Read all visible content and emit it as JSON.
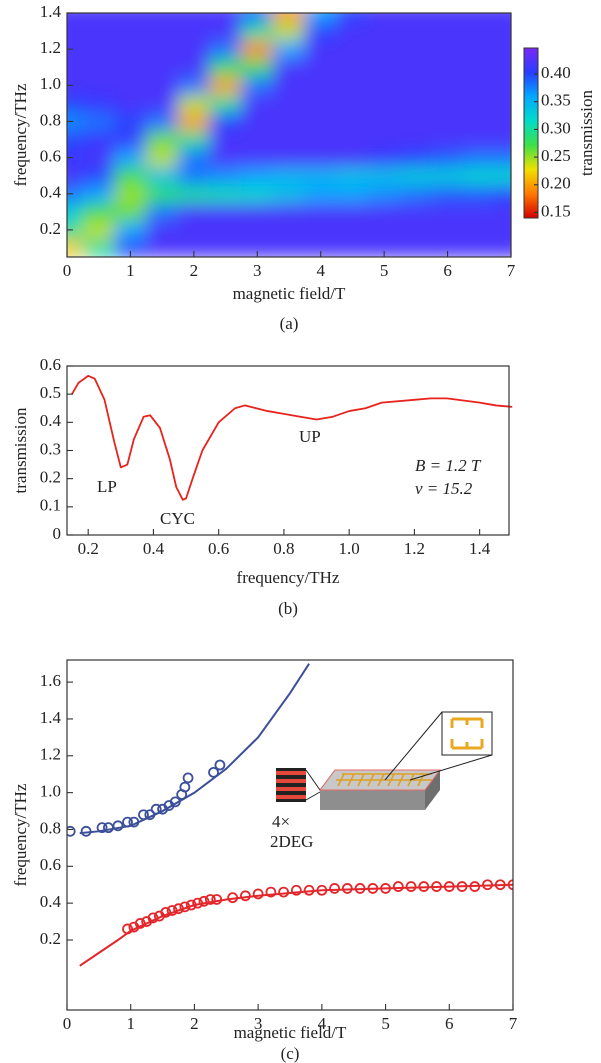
{
  "chart_data": [
    {
      "type": "heatmap",
      "caption": "(a)",
      "x_label": "magnetic field/T",
      "y_label": "frequency/THz",
      "colorbar_label": "transmission",
      "x": [
        0,
        0.5,
        1,
        1.5,
        2,
        2.5,
        3,
        3.5,
        4,
        4.5,
        5,
        5.5,
        6,
        6.5,
        7
      ],
      "y": [
        0.1,
        0.2,
        0.3,
        0.4,
        0.5,
        0.6,
        0.7,
        0.8,
        0.9,
        1.0,
        1.1,
        1.2,
        1.3,
        1.4
      ],
      "z": [
        [
          0.22,
          0.3,
          0.4,
          0.42,
          0.42,
          0.42,
          0.42,
          0.42,
          0.42,
          0.42,
          0.42,
          0.42,
          0.42,
          0.42,
          0.42
        ],
        [
          0.3,
          0.24,
          0.36,
          0.42,
          0.42,
          0.42,
          0.42,
          0.42,
          0.42,
          0.42,
          0.42,
          0.42,
          0.42,
          0.42,
          0.42
        ],
        [
          0.33,
          0.27,
          0.26,
          0.38,
          0.42,
          0.42,
          0.42,
          0.42,
          0.42,
          0.42,
          0.42,
          0.42,
          0.42,
          0.42,
          0.42
        ],
        [
          0.38,
          0.36,
          0.25,
          0.28,
          0.3,
          0.31,
          0.32,
          0.34,
          0.36,
          0.36,
          0.37,
          0.38,
          0.39,
          0.39,
          0.4
        ],
        [
          0.42,
          0.4,
          0.27,
          0.34,
          0.38,
          0.37,
          0.36,
          0.35,
          0.35,
          0.34,
          0.34,
          0.33,
          0.33,
          0.32,
          0.32
        ],
        [
          0.41,
          0.42,
          0.36,
          0.24,
          0.38,
          0.42,
          0.42,
          0.42,
          0.42,
          0.42,
          0.41,
          0.4,
          0.39,
          0.38,
          0.38
        ],
        [
          0.4,
          0.41,
          0.41,
          0.26,
          0.3,
          0.42,
          0.42,
          0.42,
          0.42,
          0.42,
          0.42,
          0.42,
          0.42,
          0.42,
          0.42
        ],
        [
          0.37,
          0.38,
          0.4,
          0.38,
          0.2,
          0.4,
          0.42,
          0.42,
          0.42,
          0.42,
          0.42,
          0.42,
          0.42,
          0.42,
          0.42
        ],
        [
          0.4,
          0.41,
          0.42,
          0.42,
          0.24,
          0.3,
          0.42,
          0.42,
          0.42,
          0.42,
          0.42,
          0.42,
          0.42,
          0.42,
          0.42
        ],
        [
          0.42,
          0.42,
          0.42,
          0.42,
          0.38,
          0.2,
          0.38,
          0.42,
          0.42,
          0.42,
          0.42,
          0.42,
          0.42,
          0.42,
          0.42
        ],
        [
          0.42,
          0.42,
          0.42,
          0.42,
          0.42,
          0.28,
          0.28,
          0.42,
          0.42,
          0.42,
          0.42,
          0.42,
          0.42,
          0.42,
          0.42
        ],
        [
          0.42,
          0.42,
          0.42,
          0.42,
          0.42,
          0.38,
          0.19,
          0.36,
          0.42,
          0.42,
          0.42,
          0.42,
          0.42,
          0.42,
          0.42
        ],
        [
          0.42,
          0.42,
          0.42,
          0.42,
          0.42,
          0.42,
          0.3,
          0.24,
          0.4,
          0.42,
          0.42,
          0.42,
          0.42,
          0.42,
          0.42
        ],
        [
          0.42,
          0.42,
          0.42,
          0.42,
          0.42,
          0.42,
          0.38,
          0.2,
          0.36,
          0.4,
          0.42,
          0.42,
          0.42,
          0.42,
          0.42
        ]
      ],
      "xlim": [
        0,
        7
      ],
      "ylim": [
        0.05,
        1.4
      ],
      "zlim": [
        0.14,
        0.447
      ],
      "xticks": [
        0,
        1,
        2,
        3,
        4,
        5,
        6,
        7
      ],
      "yticks": [
        0.2,
        0.4,
        0.6,
        0.8,
        {
          "value": 1,
          "label": "1.0"
        },
        1.2,
        1.4
      ],
      "zticks": [
        0.15,
        {
          "value": 0.2,
          "label": "0.20"
        },
        0.25,
        {
          "value": 0.3,
          "label": "0.30"
        },
        0.35,
        {
          "value": 0.4,
          "label": "0.40"
        }
      ],
      "colormap": [
        "#d40000",
        "#ff7a00",
        "#f0e000",
        "#3ee048",
        "#00dcc8",
        "#00a8ff",
        "#2a3cff",
        "#7a28f6"
      ]
    },
    {
      "type": "line",
      "caption": "(b)",
      "x_label": "frequency/THz",
      "y_label": "transmission",
      "color": "#e8221c",
      "x": [
        0.15,
        0.17,
        0.2,
        0.22,
        0.25,
        0.28,
        0.3,
        0.32,
        0.34,
        0.37,
        0.39,
        0.42,
        0.45,
        0.47,
        0.49,
        0.5,
        0.52,
        0.55,
        0.6,
        0.65,
        0.68,
        0.75,
        0.8,
        0.85,
        0.9,
        0.95,
        1.0,
        1.05,
        1.1,
        1.2,
        1.25,
        1.3,
        1.4,
        1.45,
        1.5
      ],
      "values": [
        0.5,
        0.54,
        0.565,
        0.555,
        0.48,
        0.33,
        0.24,
        0.25,
        0.34,
        0.42,
        0.425,
        0.38,
        0.27,
        0.17,
        0.125,
        0.13,
        0.2,
        0.3,
        0.4,
        0.45,
        0.46,
        0.44,
        0.43,
        0.42,
        0.41,
        0.42,
        0.44,
        0.45,
        0.47,
        0.48,
        0.485,
        0.485,
        0.47,
        0.46,
        0.455
      ],
      "annotations": [
        "LP",
        "CYC",
        "UP",
        "B = 1.2 T",
        "ν = 15.2"
      ],
      "xlim": [
        0.135,
        1.49
      ],
      "ylim": [
        0,
        0.6
      ],
      "xticks": [
        0.2,
        0.4,
        0.6,
        0.8,
        {
          "value": 1,
          "label": "1.0"
        },
        1.2,
        1.4
      ],
      "yticks": [
        0,
        0.1,
        0.2,
        0.3,
        0.4,
        0.5,
        0.6
      ]
    },
    {
      "type": "scatter",
      "caption": "(c)",
      "x_label": "magnetic field/T",
      "y_label": "frequency/THz",
      "annotations": [
        "4×",
        "2DEG"
      ],
      "series": [
        {
          "style": "line",
          "color": "#3b4f9a",
          "x": [
            0.2,
            0.5,
            1,
            1.5,
            2,
            2.5,
            3,
            3.5,
            3.8
          ],
          "values": [
            0.78,
            0.79,
            0.82,
            0.9,
            1.0,
            1.13,
            1.3,
            1.54,
            1.7
          ]
        },
        {
          "style": "line",
          "color": "#e4262a",
          "x": [
            0.2,
            0.5,
            0.8,
            1,
            1.5,
            2,
            2.5,
            3,
            4,
            5,
            6,
            7
          ],
          "values": [
            0.06,
            0.13,
            0.2,
            0.25,
            0.33,
            0.39,
            0.42,
            0.44,
            0.47,
            0.48,
            0.49,
            0.5
          ]
        },
        {
          "style": "marker",
          "color": "#3b4f9a",
          "x": [
            0.05,
            0.3,
            0.55,
            0.65,
            0.8,
            0.95,
            1.05,
            1.2,
            1.3,
            1.4,
            1.5,
            1.6,
            1.7,
            1.8,
            1.85,
            1.9,
            2.3,
            2.4
          ],
          "values": [
            0.79,
            0.79,
            0.81,
            0.81,
            0.82,
            0.84,
            0.84,
            0.88,
            0.88,
            0.91,
            0.91,
            0.93,
            0.95,
            0.99,
            1.03,
            1.08,
            1.11,
            1.15
          ]
        },
        {
          "style": "marker",
          "color": "#e4262a",
          "x": [
            0.95,
            1.05,
            1.15,
            1.25,
            1.35,
            1.45,
            1.55,
            1.65,
            1.75,
            1.85,
            1.95,
            2.05,
            2.15,
            2.25,
            2.35,
            2.6,
            2.8,
            3.0,
            3.2,
            3.4,
            3.6,
            3.8,
            4.0,
            4.2,
            4.4,
            4.6,
            4.8,
            5.0,
            5.2,
            5.4,
            5.6,
            5.8,
            6.0,
            6.2,
            6.4,
            6.6,
            6.8,
            7.0
          ],
          "values": [
            0.26,
            0.27,
            0.29,
            0.3,
            0.32,
            0.33,
            0.35,
            0.36,
            0.37,
            0.38,
            0.39,
            0.4,
            0.41,
            0.42,
            0.42,
            0.43,
            0.44,
            0.45,
            0.46,
            0.46,
            0.47,
            0.47,
            0.47,
            0.48,
            0.48,
            0.48,
            0.48,
            0.48,
            0.49,
            0.49,
            0.49,
            0.49,
            0.49,
            0.49,
            0.49,
            0.5,
            0.5,
            0.5
          ]
        }
      ],
      "xlim": [
        0,
        7
      ],
      "ylim": [
        -0.18,
        1.72
      ],
      "xticks": [
        0,
        1,
        2,
        3,
        4,
        5,
        6,
        7
      ],
      "yticks": [
        0.2,
        0.4,
        0.6,
        0.8,
        {
          "value": 1,
          "label": "1.0"
        },
        1.2,
        1.4,
        1.6
      ]
    }
  ]
}
